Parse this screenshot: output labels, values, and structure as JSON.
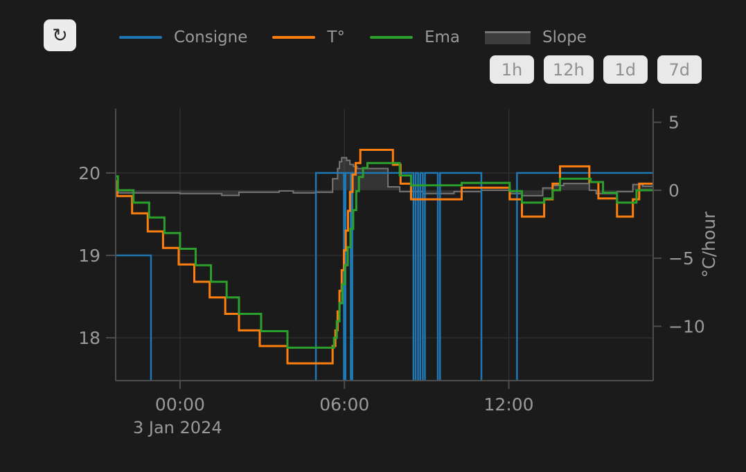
{
  "window": {
    "background": "#1b1b1b"
  },
  "toolbar": {
    "refresh_icon": "↻",
    "range_buttons": [
      {
        "label": "1h"
      },
      {
        "label": "12h"
      },
      {
        "label": "1d"
      },
      {
        "label": "7d"
      }
    ]
  },
  "legend": {
    "items": [
      {
        "label": "Consigne",
        "color": "#1f77b4",
        "swatch": "line"
      },
      {
        "label": "T°",
        "color": "#ff7f0e",
        "swatch": "line"
      },
      {
        "label": "Ema",
        "color": "#2ca02c",
        "swatch": "line"
      },
      {
        "label": "Slope",
        "color": "#767676",
        "fill": "#3d3d3d",
        "swatch": "area"
      }
    ]
  },
  "chart_data": {
    "type": "line",
    "step_mode": "hv",
    "title": "",
    "x_axis": {
      "unit": "time of day (hours relative to midnight)",
      "range": [
        -2.35,
        17.27
      ],
      "ticks": [
        {
          "t": 0,
          "label": "00:00"
        },
        {
          "t": 6,
          "label": "06:00"
        },
        {
          "t": 12,
          "label": "12:00"
        }
      ],
      "date_label": "3 Jan 2024"
    },
    "y_left": {
      "unit": "°C",
      "range": [
        17.48,
        20.78
      ],
      "ticks": [
        {
          "v": 18,
          "label": "18"
        },
        {
          "v": 19,
          "label": "19"
        },
        {
          "v": 20,
          "label": "20"
        }
      ]
    },
    "y_right": {
      "label": "°C/hour",
      "range": [
        -14,
        6
      ],
      "ticks": [
        {
          "v": 5,
          "label": "5"
        },
        {
          "v": 0,
          "label": "0"
        },
        {
          "v": -5,
          "label": "−5"
        },
        {
          "v": -10,
          "label": "−10"
        }
      ]
    },
    "grid": {
      "color": "#2f2f2f",
      "axis_color": "#4d4d4d",
      "label_color": "#9a9a9a",
      "x_lines": [
        0,
        6,
        12
      ],
      "y_left_lines": [
        18,
        19,
        20
      ]
    },
    "series": [
      {
        "name": "Slope",
        "axis": "right",
        "color": "#767676",
        "fill": "rgba(118,118,118,0.28)",
        "width": 2,
        "area": true,
        "baseline": 0,
        "points": [
          [
            -2.35,
            0.0
          ],
          [
            -2.25,
            -0.2
          ],
          [
            0.0,
            -0.25
          ],
          [
            1.52,
            -0.38
          ],
          [
            2.15,
            -0.15
          ],
          [
            3.62,
            -0.05
          ],
          [
            4.13,
            -0.2
          ],
          [
            4.94,
            -0.15
          ],
          [
            5.57,
            0.85
          ],
          [
            5.75,
            1.6
          ],
          [
            5.82,
            2.1
          ],
          [
            5.9,
            2.4
          ],
          [
            6.08,
            2.2
          ],
          [
            6.2,
            1.9
          ],
          [
            6.33,
            1.75
          ],
          [
            6.46,
            1.6
          ],
          [
            7.59,
            0.25
          ],
          [
            8.02,
            -0.1
          ],
          [
            8.86,
            -0.25
          ],
          [
            10.0,
            -0.1
          ],
          [
            11.0,
            0.0
          ],
          [
            12.05,
            -0.25
          ],
          [
            12.48,
            -0.4
          ],
          [
            13.24,
            0.17
          ],
          [
            13.6,
            0.35
          ],
          [
            14.0,
            0.5
          ],
          [
            14.94,
            0.0
          ],
          [
            15.19,
            -0.25
          ],
          [
            15.95,
            -0.1
          ],
          [
            16.53,
            0.42
          ],
          [
            16.89,
            0.3
          ]
        ]
      },
      {
        "name": "Consigne",
        "axis": "left",
        "color": "#1f77b4",
        "width": 2.5,
        "points": [
          [
            -2.35,
            19.0
          ],
          [
            -1.06,
            17.3
          ],
          [
            4.96,
            20.0
          ],
          [
            5.98,
            17.3
          ],
          [
            6.04,
            20.0
          ],
          [
            6.23,
            17.3
          ],
          [
            6.29,
            20.0
          ],
          [
            8.52,
            17.3
          ],
          [
            8.6,
            20.0
          ],
          [
            8.69,
            17.3
          ],
          [
            8.77,
            20.0
          ],
          [
            8.86,
            17.3
          ],
          [
            8.94,
            20.0
          ],
          [
            9.41,
            17.3
          ],
          [
            9.49,
            20.0
          ],
          [
            11.0,
            17.3
          ],
          [
            12.3,
            20.0
          ]
        ]
      },
      {
        "name": "T°",
        "axis": "left",
        "color": "#ff7f0e",
        "width": 3,
        "points": [
          [
            -2.35,
            19.9
          ],
          [
            -2.3,
            19.72
          ],
          [
            -1.75,
            19.51
          ],
          [
            -1.18,
            19.29
          ],
          [
            -0.62,
            19.09
          ],
          [
            -0.05,
            18.89
          ],
          [
            0.52,
            18.68
          ],
          [
            1.08,
            18.49
          ],
          [
            1.65,
            18.29
          ],
          [
            2.15,
            18.09
          ],
          [
            2.91,
            17.9
          ],
          [
            3.92,
            17.69
          ],
          [
            5.57,
            17.9
          ],
          [
            5.67,
            18.09
          ],
          [
            5.75,
            18.32
          ],
          [
            5.82,
            18.57
          ],
          [
            5.9,
            18.82
          ],
          [
            5.98,
            19.06
          ],
          [
            6.05,
            19.3
          ],
          [
            6.13,
            19.54
          ],
          [
            6.2,
            19.77
          ],
          [
            6.3,
            19.98
          ],
          [
            6.41,
            20.12
          ],
          [
            6.58,
            20.28
          ],
          [
            7.77,
            20.1
          ],
          [
            8.05,
            19.87
          ],
          [
            8.43,
            19.68
          ],
          [
            10.28,
            19.82
          ],
          [
            12.03,
            19.68
          ],
          [
            12.48,
            19.47
          ],
          [
            13.29,
            19.68
          ],
          [
            13.6,
            19.87
          ],
          [
            13.87,
            20.08
          ],
          [
            14.94,
            19.89
          ],
          [
            15.27,
            19.69
          ],
          [
            15.95,
            19.47
          ],
          [
            16.53,
            19.68
          ],
          [
            16.76,
            19.87
          ]
        ]
      },
      {
        "name": "Ema",
        "axis": "left",
        "color": "#2ca02c",
        "width": 3,
        "points": [
          [
            -2.35,
            19.96
          ],
          [
            -2.27,
            19.79
          ],
          [
            -1.7,
            19.64
          ],
          [
            -1.13,
            19.46
          ],
          [
            -0.57,
            19.27
          ],
          [
            0.0,
            19.08
          ],
          [
            0.57,
            18.88
          ],
          [
            1.13,
            18.68
          ],
          [
            1.7,
            18.49
          ],
          [
            2.15,
            18.29
          ],
          [
            2.96,
            18.08
          ],
          [
            3.92,
            17.88
          ],
          [
            5.62,
            18.0
          ],
          [
            5.72,
            18.2
          ],
          [
            5.82,
            18.42
          ],
          [
            5.92,
            18.65
          ],
          [
            6.02,
            18.88
          ],
          [
            6.12,
            19.1
          ],
          [
            6.22,
            19.32
          ],
          [
            6.32,
            19.55
          ],
          [
            6.43,
            19.78
          ],
          [
            6.53,
            19.95
          ],
          [
            6.68,
            20.06
          ],
          [
            6.84,
            20.12
          ],
          [
            8.02,
            19.97
          ],
          [
            8.43,
            19.85
          ],
          [
            10.28,
            19.88
          ],
          [
            12.03,
            19.78
          ],
          [
            12.48,
            19.64
          ],
          [
            13.29,
            19.69
          ],
          [
            13.6,
            19.79
          ],
          [
            13.87,
            19.93
          ],
          [
            14.99,
            19.89
          ],
          [
            15.44,
            19.76
          ],
          [
            15.95,
            19.64
          ],
          [
            16.66,
            19.79
          ]
        ]
      }
    ]
  }
}
